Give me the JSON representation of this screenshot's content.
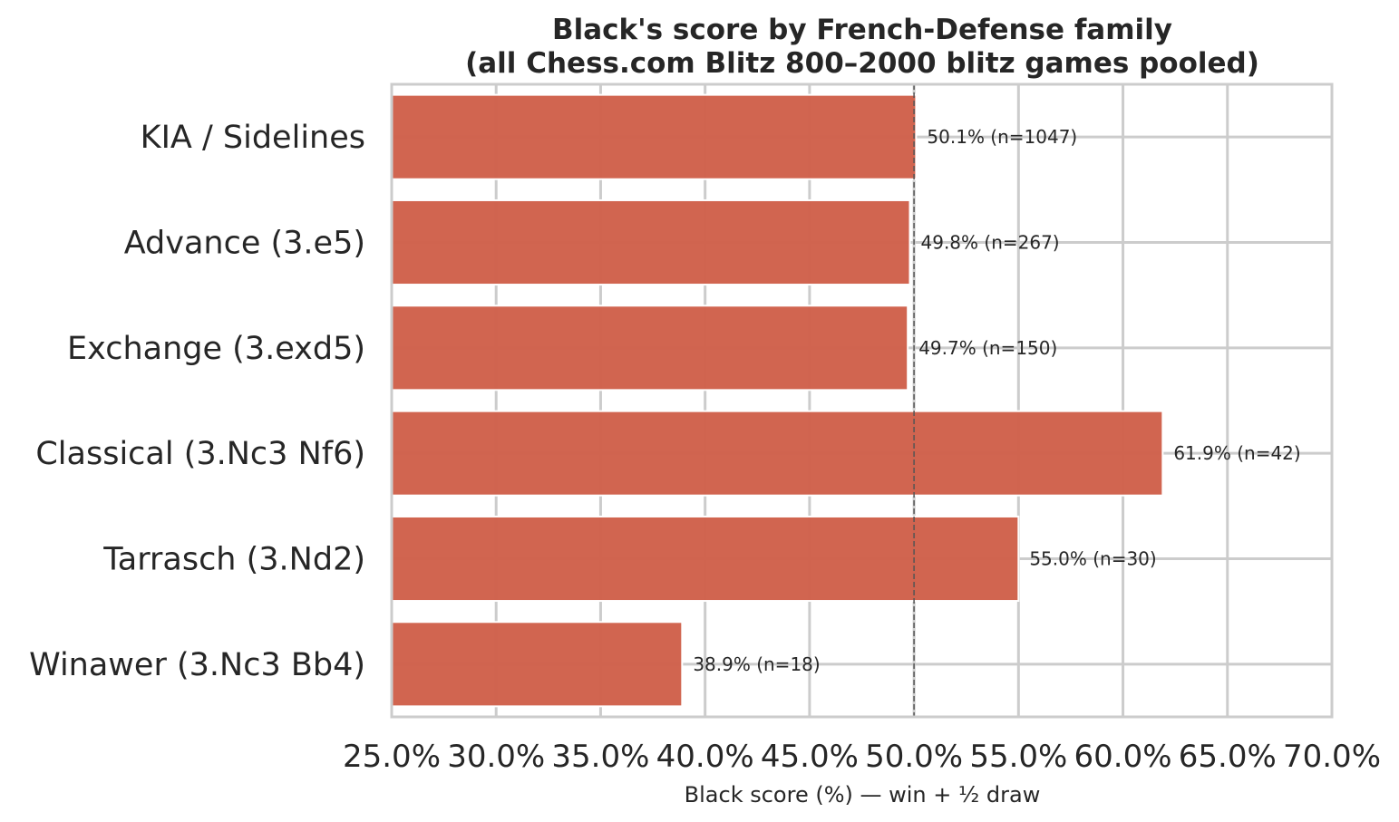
{
  "chart_data": {
    "type": "bar",
    "orientation": "horizontal",
    "title_lines": [
      "Black's score by French-Defense family",
      "(all Chess.com Blitz 800–2000 blitz games pooled)"
    ],
    "xlabel": "Black score (%) — win + ½ draw",
    "ylabel": "",
    "xlim": [
      25,
      70
    ],
    "x_ticks": [
      25,
      30,
      35,
      40,
      45,
      50,
      55,
      60,
      65,
      70
    ],
    "x_tick_labels": [
      "25.0%",
      "30.0%",
      "35.0%",
      "40.0%",
      "45.0%",
      "50.0%",
      "55.0%",
      "60.0%",
      "65.0%",
      "70.0%"
    ],
    "reference_line": 50,
    "grid": true,
    "bar_color": "#d0604a",
    "categories": [
      "KIA / Sidelines",
      "Advance (3.e5)",
      "Exchange (3.exd5)",
      "Classical (3.Nc3 Nf6)",
      "Tarrasch (3.Nd2)",
      "Winawer (3.Nc3 Bb4)"
    ],
    "values": [
      50.1,
      49.8,
      49.7,
      61.9,
      55.0,
      38.9
    ],
    "data_labels": [
      "50.1%  (n=1047)",
      "49.8%  (n=267)",
      "49.7%  (n=150)",
      "61.9%  (n=42)",
      "55.0%  (n=30)",
      "38.9%  (n=18)"
    ]
  }
}
